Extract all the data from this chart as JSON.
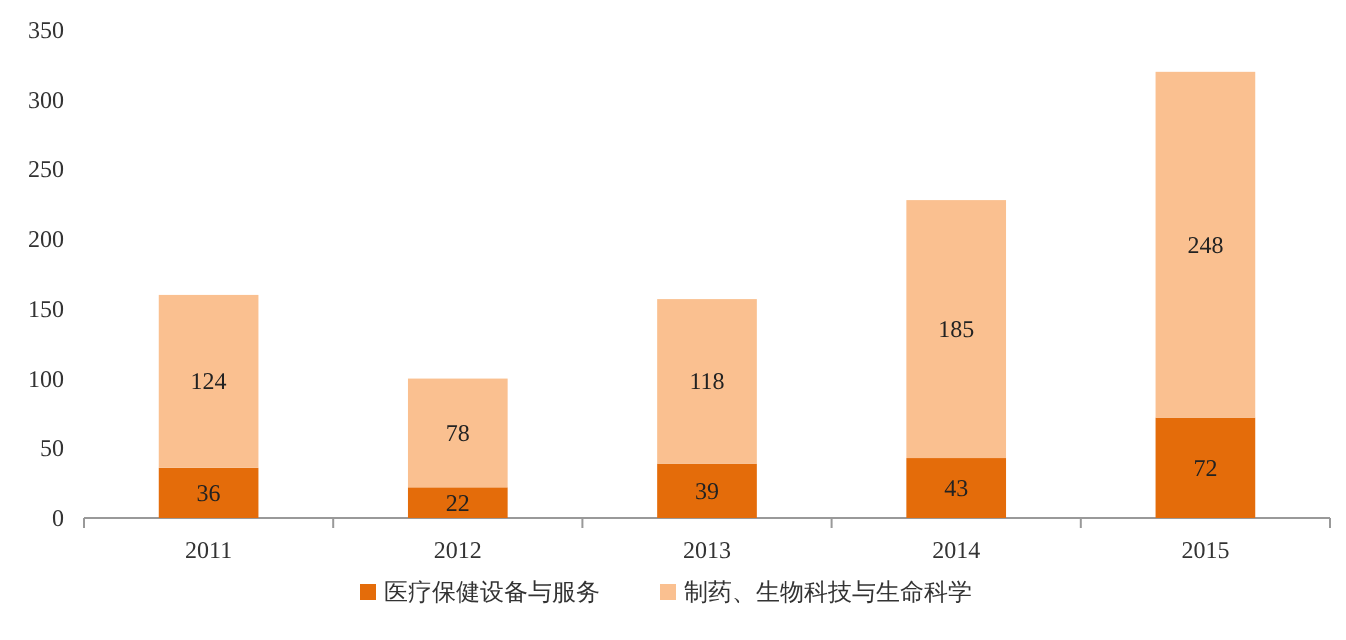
{
  "chart_data": {
    "type": "bar",
    "stacked": true,
    "data_labels": true,
    "legend": "bottom",
    "categories": [
      "2011",
      "2012",
      "2013",
      "2014",
      "2015"
    ],
    "ylim": [
      0,
      350
    ],
    "yticks": [
      0,
      50,
      100,
      150,
      200,
      250,
      300,
      350
    ],
    "series": [
      {
        "name": "医疗保健设备与服务",
        "color": "#e46c0a",
        "values": [
          36,
          22,
          39,
          43,
          72
        ]
      },
      {
        "name": "制药、生物科技与生命科学",
        "color": "#fac090",
        "values": [
          124,
          78,
          118,
          185,
          248
        ]
      }
    ]
  }
}
